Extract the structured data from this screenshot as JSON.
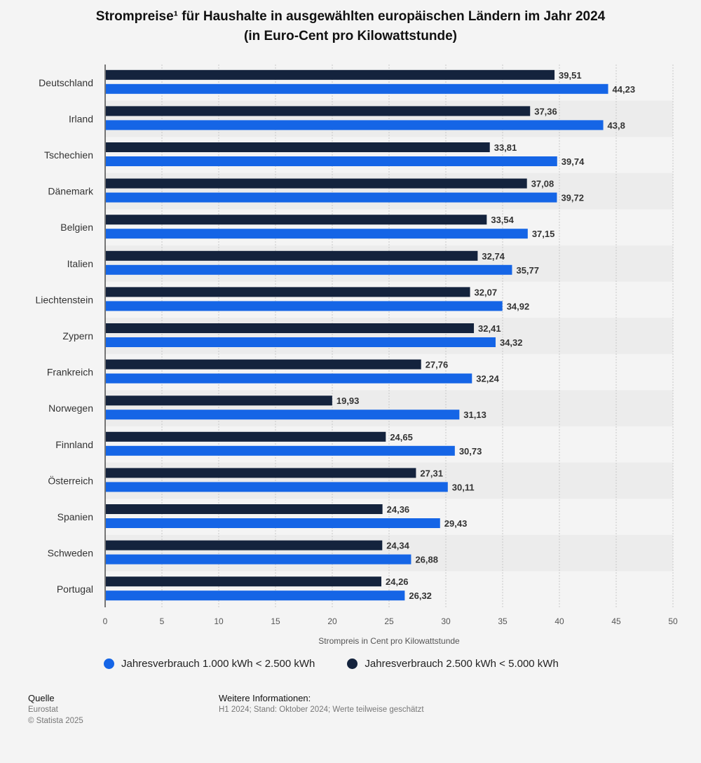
{
  "title_line1": "Strompreise¹ für Haushalte in ausgewählten europäischen Ländern im Jahr 2024",
  "title_line2": "(in Euro-Cent pro Kilowattstunde)",
  "colors": {
    "series_low": "#1565e6",
    "series_high": "#14233d",
    "background": "#f4f4f4"
  },
  "chart_data": {
    "type": "bar",
    "orientation": "horizontal",
    "categories": [
      "Deutschland",
      "Irland",
      "Tschechien",
      "Dänemark",
      "Belgien",
      "Italien",
      "Liechtenstein",
      "Zypern",
      "Frankreich",
      "Norwegen",
      "Finnland",
      "Österreich",
      "Spanien",
      "Schweden",
      "Portugal"
    ],
    "series": [
      {
        "name": "Jahresverbrauch 2.500 kWh < 5.000 kWh",
        "color": "#14233d",
        "values": [
          39.51,
          37.36,
          33.81,
          37.08,
          33.54,
          32.74,
          32.07,
          32.41,
          27.76,
          19.93,
          24.65,
          27.31,
          24.36,
          24.34,
          24.26
        ],
        "labels": [
          "39,51",
          "37,36",
          "33,81",
          "37,08",
          "33,54",
          "32,74",
          "32,07",
          "32,41",
          "27,76",
          "19,93",
          "24,65",
          "27,31",
          "24,36",
          "24,34",
          "24,26"
        ]
      },
      {
        "name": "Jahresverbrauch 1.000 kWh < 2.500 kWh",
        "color": "#1565e6",
        "values": [
          44.23,
          43.8,
          39.74,
          39.72,
          37.15,
          35.77,
          34.92,
          34.32,
          32.24,
          31.13,
          30.73,
          30.11,
          29.43,
          26.88,
          26.32
        ],
        "labels": [
          "44,23",
          "43,8",
          "39,74",
          "39,72",
          "37,15",
          "35,77",
          "34,92",
          "34,32",
          "32,24",
          "31,13",
          "30,73",
          "30,11",
          "29,43",
          "26,88",
          "26,32"
        ]
      }
    ],
    "xlabel": "Strompreis in Cent pro Kilowattstunde",
    "xlim": [
      0,
      50
    ],
    "xticks": [
      0,
      5,
      10,
      15,
      20,
      25,
      30,
      35,
      40,
      45,
      50
    ],
    "grid": true
  },
  "legend": [
    {
      "label": "Jahresverbrauch 1.000 kWh < 2.500 kWh",
      "color": "#1565e6"
    },
    {
      "label": "Jahresverbrauch 2.500 kWh < 5.000 kWh",
      "color": "#14233d"
    }
  ],
  "footer": {
    "source_heading": "Quelle",
    "source_lines": [
      "Eurostat",
      "© Statista 2025"
    ],
    "info_heading": "Weitere Informationen:",
    "info_text": "H1 2024; Stand: Oktober 2024; Werte teilweise geschätzt"
  }
}
